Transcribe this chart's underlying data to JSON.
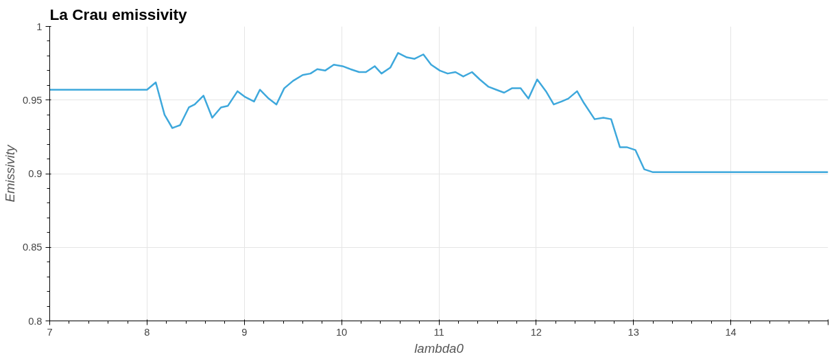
{
  "chart_data": {
    "type": "line",
    "title": "La Crau emissivity",
    "xlabel": "lambda0",
    "ylabel": "Emissivity",
    "x": [
      7.0,
      8.0,
      8.09,
      8.18,
      8.26,
      8.34,
      8.43,
      8.49,
      8.58,
      8.67,
      8.76,
      8.83,
      8.93,
      9.01,
      9.1,
      9.16,
      9.25,
      9.33,
      9.41,
      9.5,
      9.6,
      9.68,
      9.75,
      9.83,
      9.92,
      10.01,
      10.09,
      10.18,
      10.25,
      10.34,
      10.41,
      10.5,
      10.58,
      10.67,
      10.75,
      10.84,
      10.92,
      11.01,
      11.09,
      11.17,
      11.25,
      11.34,
      11.42,
      11.51,
      11.59,
      11.67,
      11.75,
      11.84,
      11.92,
      12.01,
      12.1,
      12.18,
      12.26,
      12.33,
      12.42,
      12.49,
      12.6,
      12.69,
      12.77,
      12.86,
      12.93,
      13.02,
      13.11,
      13.2,
      15.0
    ],
    "series": [
      {
        "color": "#3ea8dc",
        "values": [
          0.957,
          0.957,
          0.962,
          0.94,
          0.931,
          0.933,
          0.945,
          0.947,
          0.953,
          0.938,
          0.945,
          0.946,
          0.956,
          0.952,
          0.949,
          0.957,
          0.951,
          0.947,
          0.958,
          0.963,
          0.967,
          0.968,
          0.971,
          0.97,
          0.974,
          0.973,
          0.971,
          0.969,
          0.969,
          0.973,
          0.968,
          0.972,
          0.982,
          0.979,
          0.978,
          0.981,
          0.974,
          0.97,
          0.968,
          0.969,
          0.966,
          0.969,
          0.964,
          0.959,
          0.957,
          0.955,
          0.958,
          0.958,
          0.951,
          0.964,
          0.956,
          0.947,
          0.949,
          0.951,
          0.956,
          0.948,
          0.937,
          0.938,
          0.937,
          0.918,
          0.918,
          0.916,
          0.903,
          0.901,
          0.901
        ]
      }
    ],
    "xlim": [
      7,
      15
    ],
    "xticks": [
      7,
      8,
      9,
      10,
      11,
      12,
      13,
      14,
      {
        "value": 15,
        "label": null
      }
    ],
    "ylim": [
      0.8,
      1
    ],
    "yticks": [
      0.8,
      0.85,
      0.9,
      0.95,
      1
    ],
    "grid": true,
    "marker": "none",
    "line_style": "solid"
  }
}
